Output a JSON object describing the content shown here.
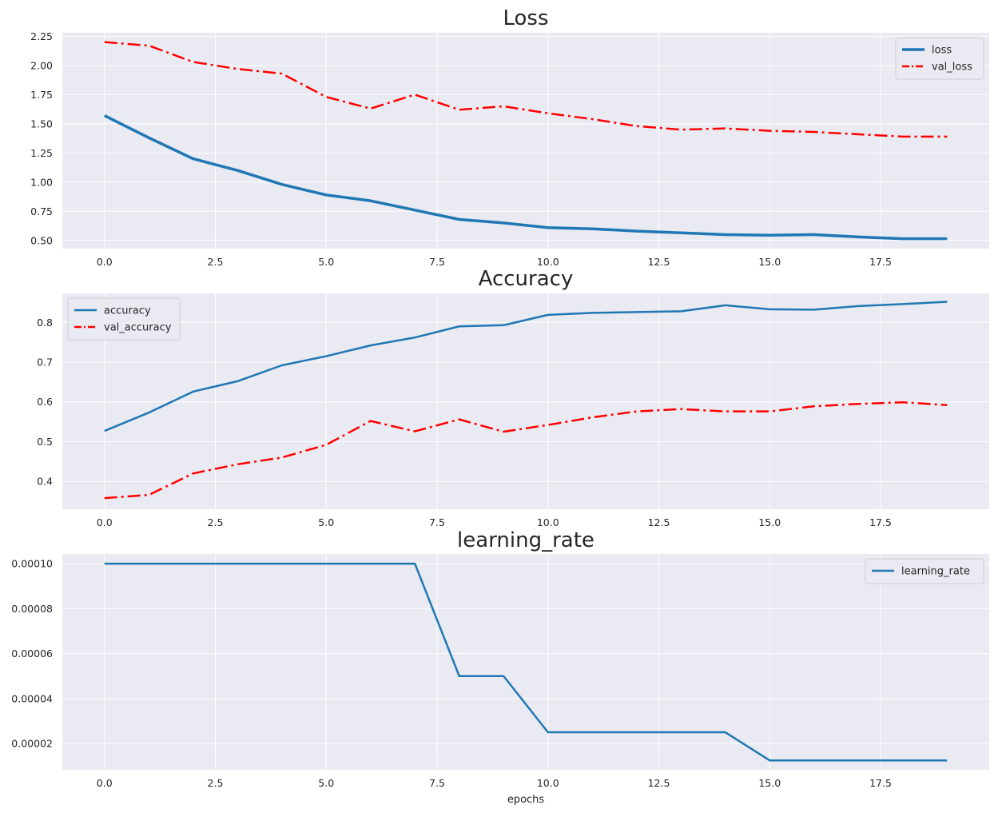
{
  "chart_data": [
    {
      "type": "line",
      "title": "Loss",
      "xlabel": "",
      "ylabel": "",
      "x": [
        0,
        1,
        2,
        3,
        4,
        5,
        6,
        7,
        8,
        9,
        10,
        11,
        12,
        13,
        14,
        15,
        16,
        17,
        18,
        19
      ],
      "xlim": [
        -0.95,
        19.95
      ],
      "ylim": [
        0.43,
        2.28
      ],
      "xticks": [
        0.0,
        2.5,
        5.0,
        7.5,
        10.0,
        12.5,
        15.0,
        17.5
      ],
      "xtick_labels": [
        "0.0",
        "2.5",
        "5.0",
        "7.5",
        "10.0",
        "12.5",
        "15.0",
        "17.5"
      ],
      "yticks": [
        0.5,
        0.75,
        1.0,
        1.25,
        1.5,
        1.75,
        2.0,
        2.25
      ],
      "ytick_labels": [
        "0.50",
        "0.75",
        "1.00",
        "1.25",
        "1.50",
        "1.75",
        "2.00",
        "2.25"
      ],
      "grid": true,
      "legend_position": "top-right",
      "series": [
        {
          "name": "loss",
          "color": "#1f77b4",
          "style": "solid",
          "width": 3.5,
          "values": [
            1.57,
            1.38,
            1.2,
            1.1,
            0.98,
            0.89,
            0.84,
            0.76,
            0.68,
            0.65,
            0.61,
            0.6,
            0.58,
            0.565,
            0.55,
            0.545,
            0.55,
            0.53,
            0.515,
            0.515
          ]
        },
        {
          "name": "val_loss",
          "color": "#ff0000",
          "style": "dashdot",
          "width": 2.5,
          "values": [
            2.2,
            2.17,
            2.03,
            1.97,
            1.93,
            1.73,
            1.63,
            1.75,
            1.62,
            1.65,
            1.59,
            1.54,
            1.48,
            1.45,
            1.46,
            1.44,
            1.43,
            1.41,
            1.39,
            1.39
          ]
        }
      ]
    },
    {
      "type": "line",
      "title": "Accuracy",
      "xlabel": "",
      "ylabel": "",
      "x": [
        0,
        1,
        2,
        3,
        4,
        5,
        6,
        7,
        8,
        9,
        10,
        11,
        12,
        13,
        14,
        15,
        16,
        17,
        18,
        19
      ],
      "xlim": [
        -0.95,
        19.95
      ],
      "ylim": [
        0.33,
        0.873
      ],
      "xticks": [
        0.0,
        2.5,
        5.0,
        7.5,
        10.0,
        12.5,
        15.0,
        17.5
      ],
      "xtick_labels": [
        "0.0",
        "2.5",
        "5.0",
        "7.5",
        "10.0",
        "12.5",
        "15.0",
        "17.5"
      ],
      "yticks": [
        0.4,
        0.5,
        0.6,
        0.7,
        0.8
      ],
      "ytick_labels": [
        "0.4",
        "0.5",
        "0.6",
        "0.7",
        "0.8"
      ],
      "grid": true,
      "legend_position": "top-left",
      "series": [
        {
          "name": "accuracy",
          "color": "#1f77b4",
          "style": "solid",
          "width": 2.5,
          "values": [
            0.527,
            0.573,
            0.626,
            0.652,
            0.692,
            0.715,
            0.742,
            0.762,
            0.79,
            0.793,
            0.819,
            0.824,
            0.826,
            0.828,
            0.843,
            0.833,
            0.832,
            0.841,
            0.846,
            0.852
          ]
        },
        {
          "name": "val_accuracy",
          "color": "#ff0000",
          "style": "dashdot",
          "width": 2.5,
          "values": [
            0.358,
            0.366,
            0.42,
            0.443,
            0.46,
            0.492,
            0.552,
            0.526,
            0.556,
            0.525,
            0.542,
            0.561,
            0.576,
            0.582,
            0.576,
            0.576,
            0.589,
            0.595,
            0.599,
            0.592
          ]
        }
      ]
    },
    {
      "type": "line",
      "title": "learning_rate",
      "xlabel": "epochs",
      "ylabel": "",
      "x": [
        0,
        1,
        2,
        3,
        4,
        5,
        6,
        7,
        8,
        9,
        10,
        11,
        12,
        13,
        14,
        15,
        16,
        17,
        18,
        19
      ],
      "xlim": [
        -0.95,
        19.95
      ],
      "ylim": [
        8.3e-06,
        0.0001043
      ],
      "xticks": [
        0.0,
        2.5,
        5.0,
        7.5,
        10.0,
        12.5,
        15.0,
        17.5
      ],
      "xtick_labels": [
        "0.0",
        "2.5",
        "5.0",
        "7.5",
        "10.0",
        "12.5",
        "15.0",
        "17.5"
      ],
      "yticks": [
        2e-05,
        4e-05,
        6e-05,
        8e-05,
        0.0001
      ],
      "ytick_labels": [
        "0.00002",
        "0.00004",
        "0.00006",
        "0.00008",
        "0.00010"
      ],
      "grid": true,
      "legend_position": "top-right",
      "series": [
        {
          "name": "learning_rate",
          "color": "#1f77b4",
          "style": "solid",
          "width": 2.5,
          "values": [
            0.0001,
            0.0001,
            0.0001,
            0.0001,
            0.0001,
            0.0001,
            0.0001,
            0.0001,
            5e-05,
            5e-05,
            2.5e-05,
            2.5e-05,
            2.5e-05,
            2.5e-05,
            2.5e-05,
            1.25e-05,
            1.25e-05,
            1.25e-05,
            1.25e-05,
            1.25e-05
          ]
        }
      ]
    }
  ]
}
